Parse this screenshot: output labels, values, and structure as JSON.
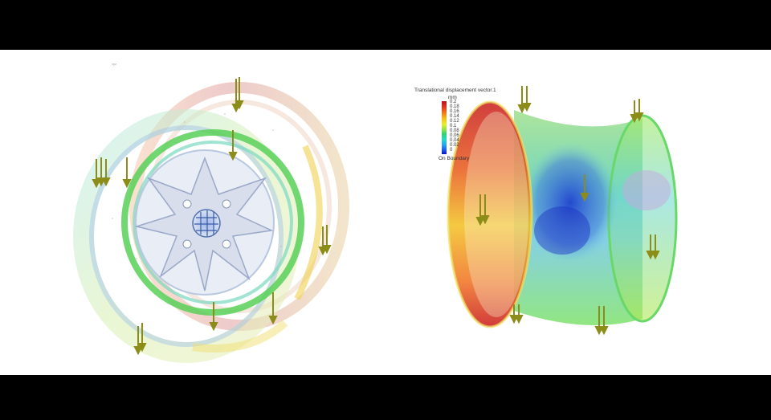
{
  "left_view": {
    "tiny_label": "xyz"
  },
  "legend": {
    "title": "Translational displacement vector.1",
    "unit": "mm",
    "ticks": [
      "0.2",
      "0.18",
      "0.16",
      "0.14",
      "0.12",
      "0.1",
      "0.08",
      "0.06",
      "0.04",
      "0.02",
      "0"
    ],
    "footer": "On Boundary"
  },
  "colors": {
    "letterbox": "#000000",
    "background": "#ffffff",
    "arrow": "#8c8c18",
    "high": "#c0181c",
    "mid": "#6de25a",
    "low": "#1a3ad0"
  }
}
